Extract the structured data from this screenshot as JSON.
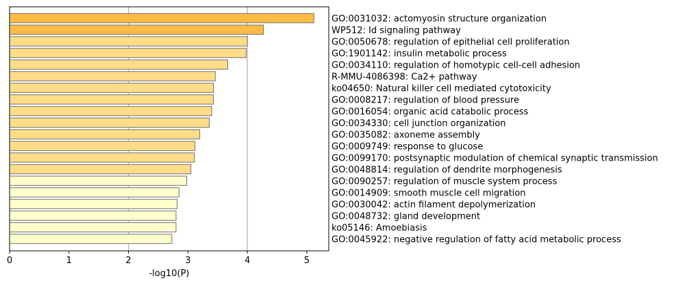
{
  "chart_data": {
    "type": "bar",
    "orientation": "horizontal",
    "xlabel": "-log10(P)",
    "ylabel": "",
    "xlim": [
      0,
      5.37
    ],
    "xticks": [
      0,
      1,
      2,
      3,
      4,
      5
    ],
    "grid": "vertical lines at x=2 and x=4",
    "categories": [
      "GO:0031032: actomyosin structure organization",
      "WP512: Id signaling pathway",
      "GO:0050678: regulation of epithelial cell proliferation",
      "GO:1901142: insulin metabolic process",
      "GO:0034110: regulation of homotypic cell-cell adhesion",
      "R-MMU-4086398: Ca2+ pathway",
      "ko04650: Natural killer cell mediated cytotoxicity",
      "GO:0008217: regulation of blood pressure",
      "GO:0016054: organic acid catabolic process",
      "GO:0034330: cell junction organization",
      "GO:0035082: axoneme assembly",
      "GO:0009749: response to glucose",
      "GO:0099170: postsynaptic modulation of chemical synaptic transmission",
      "GO:0048814: regulation of dendrite morphogenesis",
      "GO:0090257: regulation of muscle system process",
      "GO:0014909: smooth muscle cell migration",
      "GO:0030042: actin filament depolymerization",
      "GO:0048732: gland development",
      "ko05146: Amoebiasis",
      "GO:0045922: negative regulation of fatty acid metabolic process"
    ],
    "values": [
      5.12,
      4.27,
      4.0,
      3.98,
      3.67,
      3.46,
      3.43,
      3.43,
      3.4,
      3.36,
      3.2,
      3.12,
      3.11,
      3.05,
      2.98,
      2.85,
      2.82,
      2.8,
      2.8,
      2.73
    ],
    "bar_colors": [
      "#ffbb44",
      "#ffbb44",
      "#ffdd88",
      "#ffdd88",
      "#ffdd88",
      "#ffdd88",
      "#ffdd88",
      "#ffdd88",
      "#ffdd88",
      "#ffdd88",
      "#ffdd88",
      "#ffdd88",
      "#ffdd88",
      "#ffdd88",
      "#ffffcc",
      "#ffffcc",
      "#ffffcc",
      "#ffffcc",
      "#ffffcc",
      "#ffffcc"
    ],
    "bar_edge_color": "#707070",
    "grid_color": "#b0b0b0"
  }
}
